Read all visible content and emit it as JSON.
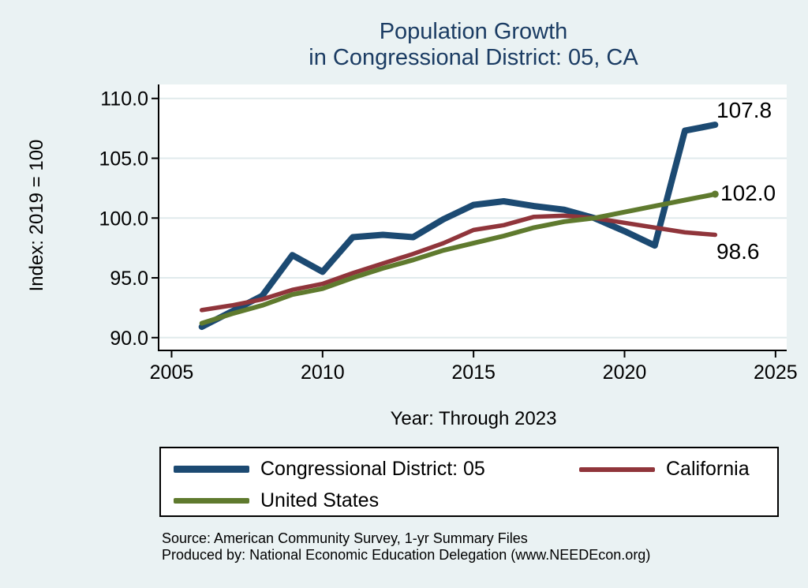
{
  "title": {
    "line1": "Population Growth",
    "line2": "in Congressional District: 05, CA"
  },
  "axes": {
    "y_title": "Index: 2019 = 100",
    "x_title": "Year: Through 2023",
    "y_tick_labels": [
      "90.0",
      "95.0",
      "100.0",
      "105.0",
      "110.0"
    ],
    "x_tick_labels": [
      "2005",
      "2010",
      "2015",
      "2020",
      "2025"
    ]
  },
  "chart_data": {
    "type": "line",
    "title": "Population Growth in Congressional District: 05, CA",
    "xlabel": "Year: Through 2023",
    "ylabel": "Index: 2019 = 100",
    "x": [
      2006,
      2007,
      2008,
      2009,
      2010,
      2011,
      2012,
      2013,
      2014,
      2015,
      2016,
      2017,
      2018,
      2019,
      2020,
      2021,
      2022,
      2023
    ],
    "series": [
      {
        "name": "Congressional District: 05",
        "color": "#1c4a72",
        "line_width": 8,
        "end_label": "107.8",
        "values": [
          90.9,
          92.2,
          93.5,
          96.9,
          95.5,
          98.4,
          98.6,
          98.4,
          99.9,
          101.1,
          101.4,
          101.0,
          100.7,
          100.0,
          98.9,
          97.7,
          107.3,
          107.8
        ]
      },
      {
        "name": "California",
        "color": "#90353b",
        "line_width": 5.5,
        "end_label": "98.6",
        "values": [
          92.3,
          92.7,
          93.2,
          94.0,
          94.5,
          95.4,
          96.2,
          97.0,
          97.9,
          99.0,
          99.4,
          100.1,
          100.2,
          100.0,
          99.6,
          99.2,
          98.8,
          98.6
        ]
      },
      {
        "name": "United States",
        "color": "#5f7a2e",
        "line_width": 6,
        "end_label": "102.0",
        "end_marker": true,
        "values": [
          91.2,
          92.0,
          92.7,
          93.6,
          94.1,
          95.0,
          95.8,
          96.5,
          97.3,
          97.9,
          98.5,
          99.2,
          99.7,
          100.0,
          100.5,
          101.0,
          101.5,
          102.0
        ]
      }
    ],
    "xlim": [
      2004.57,
      2025.37
    ],
    "ylim": [
      88.93,
      111.17
    ],
    "x_tick_values": [
      2005,
      2010,
      2015,
      2020,
      2025
    ],
    "y_tick_values": [
      90,
      95,
      100,
      105,
      110
    ],
    "y_gridlines": [
      90,
      95,
      100,
      105,
      110
    ],
    "grid": "horizontal-only",
    "legend_position": "bottom"
  },
  "legend": {
    "items": [
      {
        "label": "Congressional District: 05"
      },
      {
        "label": "California"
      },
      {
        "label": "United States"
      }
    ]
  },
  "notes": {
    "source": "Source: American Community Survey, 1-yr Summary Files",
    "produced_by": "Produced by: National Economic Education Delegation (www.NEEDEcon.org)"
  },
  "colors": {
    "background": "#eaf2f3",
    "plot_background": "#ffffff",
    "gridline": "#e0eaec",
    "axis": "#000000",
    "title_text": "#1b3c63"
  }
}
